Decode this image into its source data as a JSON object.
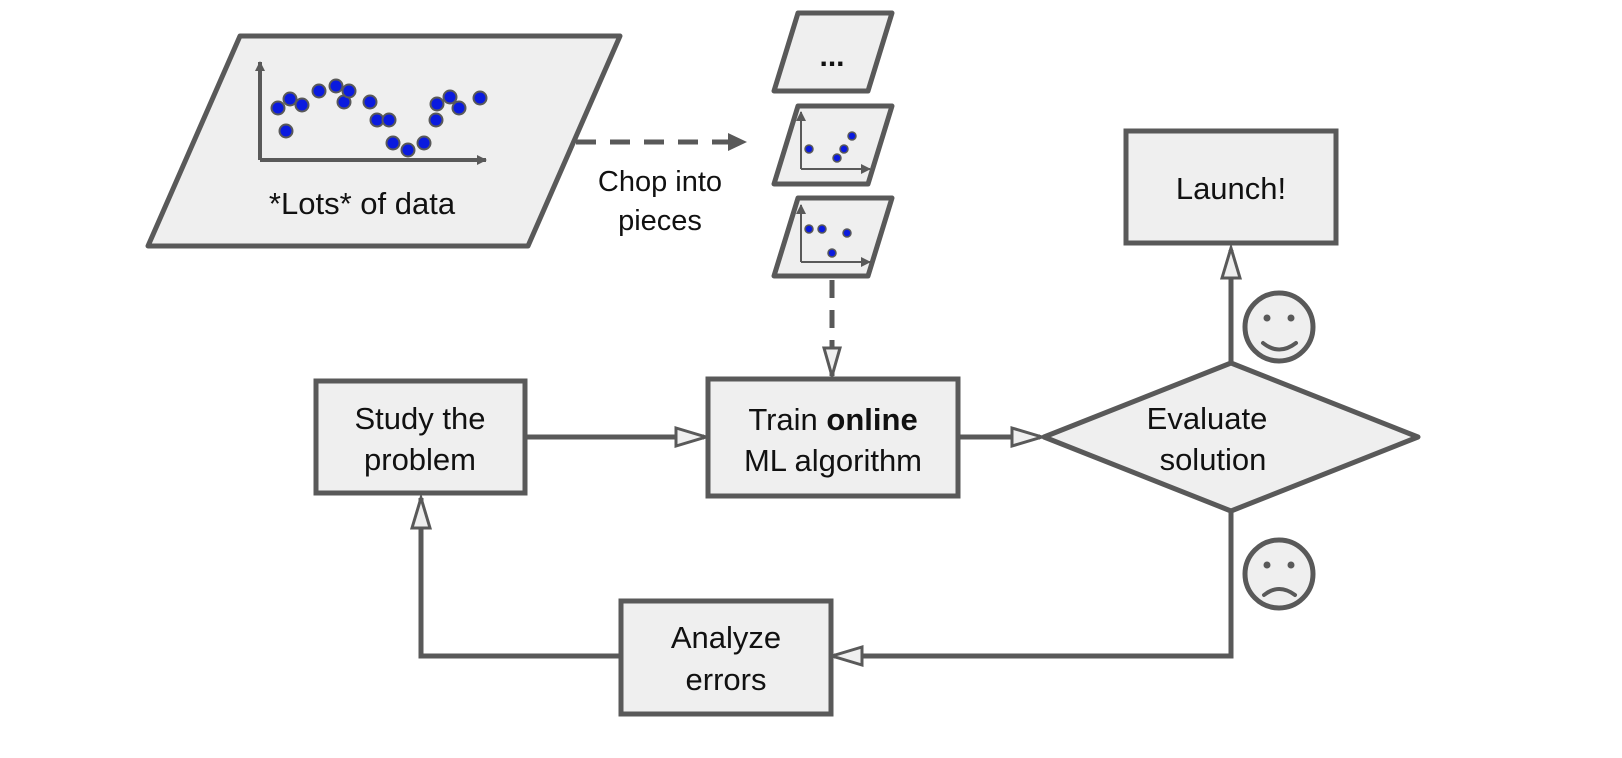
{
  "colors": {
    "stroke": "#595959",
    "fill": "#efefef",
    "dot": "#0a1adf",
    "text": "#111111"
  },
  "data_store": {
    "label": "*Lots* of data"
  },
  "chop": {
    "line1": "Chop into",
    "line2": "pieces"
  },
  "pieces": {
    "more": "..."
  },
  "study": {
    "line1": "Study the",
    "line2": "problem"
  },
  "train": {
    "prefix": "Train ",
    "bold": "online",
    "line2": "ML algorithm"
  },
  "evaluate": {
    "line1": "Evaluate",
    "line2": "solution"
  },
  "launch": {
    "label": "Launch!"
  },
  "analyze": {
    "line1": "Analyze",
    "line2": "errors"
  },
  "icons": {
    "happy": "happy-face-icon",
    "sad": "sad-face-icon"
  }
}
